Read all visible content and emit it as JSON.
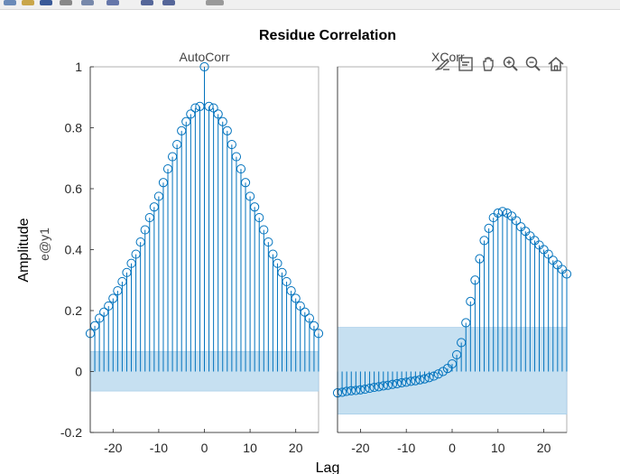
{
  "figure": {
    "title": "Residue Correlation",
    "ylabel_outer": "Amplitude",
    "xlabel": "Lag"
  },
  "axes_toolbar": {
    "icons": [
      "brush-icon",
      "datatip-icon",
      "pan-hand-icon",
      "zoom-in-icon",
      "zoom-out-icon",
      "home-icon"
    ]
  },
  "colors": {
    "stem": "#0072bd",
    "band_fill": "#c6e0f1",
    "axis": "#262626",
    "tick_text": "#262626"
  },
  "chart_data": [
    {
      "type": "stem",
      "title": "AutoCorr",
      "ylabel": "e@y1",
      "xlim": [
        -25,
        25
      ],
      "ylim": [
        -0.2,
        1
      ],
      "xticks": [
        -20,
        -10,
        0,
        10,
        20
      ],
      "yticks": [
        -0.2,
        0,
        0.2,
        0.4,
        0.6,
        0.8,
        1
      ],
      "grid": false,
      "confidence_band": [
        -0.064,
        0.066
      ],
      "x": [
        -25,
        -24,
        -23,
        -22,
        -21,
        -20,
        -19,
        -18,
        -17,
        -16,
        -15,
        -14,
        -13,
        -12,
        -11,
        -10,
        -9,
        -8,
        -7,
        -6,
        -5,
        -4,
        -3,
        -2,
        -1,
        0,
        1,
        2,
        3,
        4,
        5,
        6,
        7,
        8,
        9,
        10,
        11,
        12,
        13,
        14,
        15,
        16,
        17,
        18,
        19,
        20,
        21,
        22,
        23,
        24,
        25
      ],
      "y": [
        0.125,
        0.15,
        0.175,
        0.195,
        0.215,
        0.24,
        0.265,
        0.295,
        0.325,
        0.355,
        0.385,
        0.425,
        0.465,
        0.505,
        0.54,
        0.575,
        0.62,
        0.665,
        0.705,
        0.745,
        0.79,
        0.82,
        0.845,
        0.865,
        0.87,
        1.0,
        0.87,
        0.865,
        0.845,
        0.82,
        0.79,
        0.745,
        0.705,
        0.665,
        0.62,
        0.575,
        0.54,
        0.505,
        0.465,
        0.425,
        0.385,
        0.355,
        0.325,
        0.295,
        0.265,
        0.24,
        0.215,
        0.195,
        0.175,
        0.15,
        0.125
      ]
    },
    {
      "type": "stem",
      "title": "XCorr",
      "xlim": [
        -25,
        25
      ],
      "ylim": [
        -0.2,
        1
      ],
      "xticks": [
        -20,
        -10,
        0,
        10,
        20
      ],
      "grid": false,
      "confidence_band": [
        -0.14,
        0.145
      ],
      "x": [
        -25,
        -24,
        -23,
        -22,
        -21,
        -20,
        -19,
        -18,
        -17,
        -16,
        -15,
        -14,
        -13,
        -12,
        -11,
        -10,
        -9,
        -8,
        -7,
        -6,
        -5,
        -4,
        -3,
        -2,
        -1,
        0,
        1,
        2,
        3,
        4,
        5,
        6,
        7,
        8,
        9,
        10,
        11,
        12,
        13,
        14,
        15,
        16,
        17,
        18,
        19,
        20,
        21,
        22,
        23,
        24,
        25
      ],
      "y": [
        -0.07,
        -0.068,
        -0.065,
        -0.063,
        -0.062,
        -0.06,
        -0.058,
        -0.055,
        -0.052,
        -0.05,
        -0.047,
        -0.045,
        -0.042,
        -0.04,
        -0.037,
        -0.035,
        -0.032,
        -0.03,
        -0.027,
        -0.024,
        -0.02,
        -0.015,
        -0.008,
        0.0,
        0.01,
        0.025,
        0.055,
        0.095,
        0.16,
        0.23,
        0.3,
        0.37,
        0.43,
        0.47,
        0.505,
        0.52,
        0.525,
        0.52,
        0.51,
        0.495,
        0.475,
        0.46,
        0.445,
        0.43,
        0.415,
        0.4,
        0.385,
        0.365,
        0.35,
        0.335,
        0.32
      ]
    }
  ]
}
